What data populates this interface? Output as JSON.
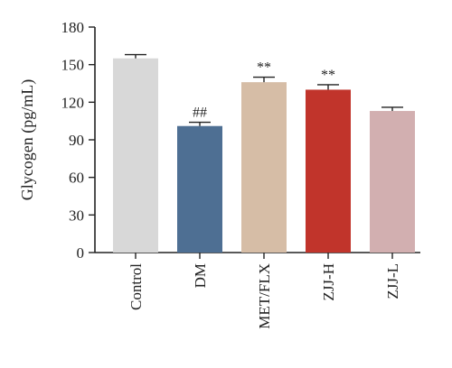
{
  "chart_data": {
    "type": "bar",
    "ylabel": "Glycogen (pg/mL)",
    "xlabel": "",
    "ylim": [
      0,
      180
    ],
    "yticks": [
      "0",
      "30",
      "60",
      "90",
      "120",
      "150",
      "180"
    ],
    "categories": [
      "Control",
      "DM",
      "MET/FLX",
      "ZJJ-H",
      "ZJJ-L"
    ],
    "values": [
      155,
      101,
      136,
      130,
      113
    ],
    "errors": [
      3,
      3,
      4,
      4,
      3
    ],
    "colors": [
      "#d8d8d8",
      "#4e6f93",
      "#d6bda6",
      "#c1342b",
      "#d2afb0"
    ],
    "annotations": [
      "",
      "##",
      "**",
      "**",
      ""
    ],
    "grid": false,
    "legend": "none"
  }
}
